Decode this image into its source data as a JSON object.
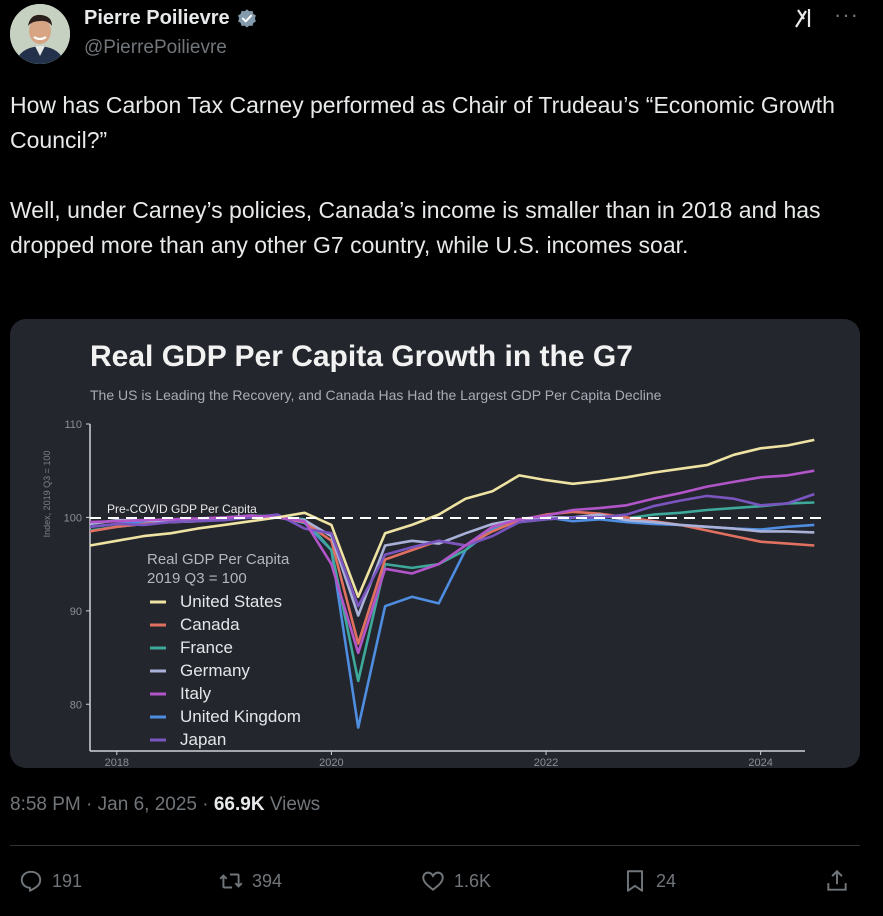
{
  "author": {
    "name": "Pierre Poilievre",
    "handle": "@PierrePoilievre",
    "verified_icon": "verified-badge-icon"
  },
  "tweet": {
    "paragraph1": "How has Carbon Tax Carney performed as Chair of Trudeau’s “Economic Growth Council?”",
    "paragraph2": "Well, under Carney’s policies, Canada’s income is smaller than in 2018 and has dropped more than any other G7 country, while U.S. incomes soar."
  },
  "meta": {
    "time": "8:58 PM",
    "date": "Jan 6, 2025",
    "views_count": "66.9K",
    "views_label": "Views"
  },
  "actions": {
    "replies": "191",
    "reposts": "394",
    "likes": "1.6K",
    "bookmarks": "24"
  },
  "chart_data": {
    "type": "line",
    "title": "Real GDP Per Capita Growth in the G7",
    "subtitle": "The US is Leading the Recovery, and Canada Has Had the Largest GDP Per Capita Decline",
    "ylabel": "Index, 2019 Q3 = 100",
    "ylim": [
      75,
      110
    ],
    "yticks": [
      "110",
      "100",
      "90",
      "80"
    ],
    "xticks": [
      "2018",
      "2020",
      "2022",
      "2024"
    ],
    "baseline_label": "Pre-COVID GDP Per Capita",
    "legend_title": "Real GDP Per Capita",
    "legend_subtitle": "2019 Q3 = 100",
    "x": [
      2017.75,
      2018.0,
      2018.25,
      2018.5,
      2018.75,
      2019.0,
      2019.25,
      2019.5,
      2019.75,
      2020.0,
      2020.25,
      2020.5,
      2020.75,
      2021.0,
      2021.25,
      2021.5,
      2021.75,
      2022.0,
      2022.25,
      2022.5,
      2022.75,
      2023.0,
      2023.25,
      2023.5,
      2023.75,
      2024.0,
      2024.25,
      2024.5
    ],
    "series": [
      {
        "name": "United States",
        "color": "#efe3a3",
        "values": [
          97,
          97.5,
          98,
          98.3,
          98.8,
          99.2,
          99.6,
          100,
          100.5,
          99.2,
          91.5,
          98.3,
          99.2,
          100.3,
          102,
          102.8,
          104.5,
          104,
          103.6,
          103.9,
          104.3,
          104.8,
          105.2,
          105.6,
          106.7,
          107.4,
          107.7,
          108.3
        ]
      },
      {
        "name": "Canada",
        "color": "#e07060",
        "values": [
          98.5,
          99,
          99.3,
          99.5,
          99.6,
          99.8,
          100,
          100,
          99.5,
          97.5,
          86.5,
          95.5,
          96.5,
          97.5,
          97,
          98.5,
          99.7,
          100.3,
          100.6,
          100.4,
          100,
          99.6,
          99.2,
          98.6,
          98,
          97.4,
          97.2,
          97
        ]
      },
      {
        "name": "France",
        "color": "#3ea89a",
        "values": [
          98.6,
          99,
          99.3,
          99.5,
          99.8,
          100,
          100.2,
          100.1,
          99.8,
          96.5,
          82.5,
          95,
          94.6,
          95,
          96.5,
          99,
          99.5,
          99.8,
          100,
          100.2,
          99.9,
          100.3,
          100.5,
          100.8,
          101,
          101.2,
          101.5,
          101.6
        ]
      },
      {
        "name": "Germany",
        "color": "#aab1d8",
        "values": [
          99.3,
          99.7,
          99.7,
          99.5,
          99.6,
          99.9,
          100,
          100,
          99.7,
          98,
          89.5,
          97,
          97.5,
          97.2,
          98.3,
          99.3,
          99.8,
          100,
          100,
          100.3,
          99.7,
          99.5,
          99.2,
          99,
          98.8,
          98.5,
          98.5,
          98.4
        ]
      },
      {
        "name": "Italy",
        "color": "#b155c8",
        "values": [
          99.5,
          99.6,
          99.7,
          99.8,
          99.9,
          100,
          100.2,
          100,
          99.6,
          95,
          85.5,
          94.5,
          94,
          95,
          97,
          99,
          99.8,
          100.2,
          100.8,
          101,
          101.3,
          102,
          102.6,
          103.3,
          103.8,
          104.3,
          104.5,
          105
        ]
      },
      {
        "name": "United Kingdom",
        "color": "#4e8de0",
        "values": [
          99,
          99.3,
          99.5,
          99.6,
          99.7,
          99.9,
          100,
          100,
          99.4,
          96.5,
          77.5,
          90.5,
          91.5,
          90.8,
          96.5,
          98.7,
          99.5,
          100,
          99.6,
          99.8,
          99.5,
          99.3,
          99.2,
          99,
          98.8,
          98.7,
          99,
          99.2
        ]
      },
      {
        "name": "Japan",
        "color": "#7a55c0",
        "values": [
          99,
          99.3,
          99.2,
          99.5,
          99.6,
          99.7,
          100,
          100.3,
          98.8,
          98.3,
          90.5,
          96,
          96.8,
          97.5,
          97,
          98,
          99.5,
          99.8,
          100,
          100,
          100.3,
          101.2,
          101.8,
          102.3,
          102,
          101.3,
          101.5,
          102.5
        ]
      }
    ]
  }
}
